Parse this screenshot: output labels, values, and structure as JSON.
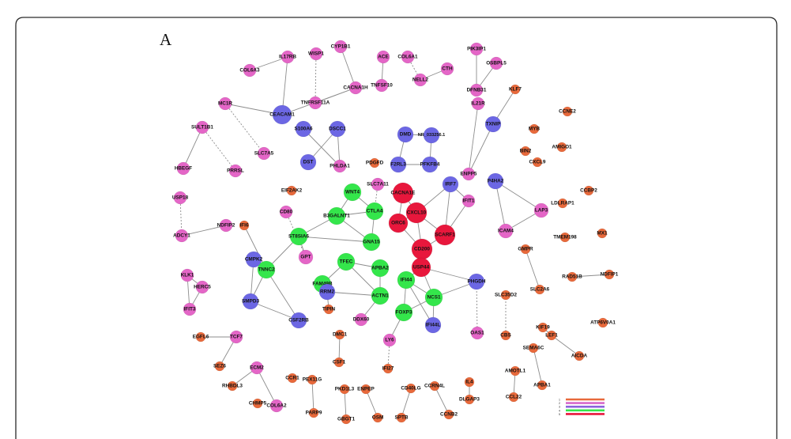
{
  "figure": {
    "panel_label": "A"
  },
  "groups": [
    {
      "id": 1,
      "color": "#E8693B"
    },
    {
      "id": 2,
      "color": "#E466C7"
    },
    {
      "id": 3,
      "color": "#6C67E4"
    },
    {
      "id": 4,
      "color": "#34E64B"
    },
    {
      "id": 5,
      "color": "#E8173C"
    }
  ],
  "legend": [
    {
      "label": "1",
      "color": "#E8693B"
    },
    {
      "label": "2",
      "color": "#D768CC"
    },
    {
      "label": "3",
      "color": "#8A62DC"
    },
    {
      "label": "4",
      "color": "#34E64B"
    },
    {
      "label": "5",
      "color": "#E8173C"
    }
  ],
  "nodes": [
    {
      "label": "ACE",
      "group": 2
    },
    {
      "label": "COL6A1",
      "group": 2
    },
    {
      "label": "CTH",
      "group": 2
    },
    {
      "label": "CYP1B1",
      "group": 2
    },
    {
      "label": "WISP1",
      "group": 2
    },
    {
      "label": "IL17RB",
      "group": 2
    },
    {
      "label": "COL6A3",
      "group": 2
    },
    {
      "label": "PIK3IP1",
      "group": 2
    },
    {
      "label": "OSBPL5",
      "group": 2
    },
    {
      "label": "NELL2",
      "group": 2
    },
    {
      "label": "DFNB31",
      "group": 2
    },
    {
      "label": "CACNA1H",
      "group": 2
    },
    {
      "label": "TNFSF10",
      "group": 2
    },
    {
      "label": "TNFRSF11A",
      "group": 2
    },
    {
      "label": "KLF7",
      "group": 1
    },
    {
      "label": "MC1R",
      "group": 2
    },
    {
      "label": "CEACAM1",
      "group": 3
    },
    {
      "label": "IL21R",
      "group": 2
    },
    {
      "label": "CCNE2",
      "group": 1
    },
    {
      "label": "TXNIP",
      "group": 3
    },
    {
      "label": "MYB",
      "group": 1
    },
    {
      "label": "SULT1B1",
      "group": 2
    },
    {
      "label": "S100A6",
      "group": 3
    },
    {
      "label": "DSCC1",
      "group": 3
    },
    {
      "label": "DMD",
      "group": 3
    },
    {
      "label": "NR_033256.1",
      "group": 3
    },
    {
      "label": "SLC7A5",
      "group": 2
    },
    {
      "label": "BIN2",
      "group": 1
    },
    {
      "label": "AMIGO1",
      "group": 1
    },
    {
      "label": "DST",
      "group": 3
    },
    {
      "label": "CXCL9",
      "group": 1
    },
    {
      "label": "PHLDA1",
      "group": 2
    },
    {
      "label": "PDGFD",
      "group": 1
    },
    {
      "label": "F2RL3",
      "group": 3
    },
    {
      "label": "PFKFB4",
      "group": 3
    },
    {
      "label": "HBEGF",
      "group": 2
    },
    {
      "label": "PRRSL",
      "group": 2
    },
    {
      "label": "ENPP5",
      "group": 2
    },
    {
      "label": "P4HA2",
      "group": 3
    },
    {
      "label": "EIF2AK2",
      "group": 1
    },
    {
      "label": "SLC7A11",
      "group": 2
    },
    {
      "label": "IRF7",
      "group": 3
    },
    {
      "label": "WNT4",
      "group": 4
    },
    {
      "label": "CACNA1E",
      "group": 5
    },
    {
      "label": "CCBP2",
      "group": 1
    },
    {
      "label": "USP18",
      "group": 2
    },
    {
      "label": "IFIT1",
      "group": 2
    },
    {
      "label": "LDLRAP1",
      "group": 1
    },
    {
      "label": "LAP3",
      "group": 2
    },
    {
      "label": "CTLA4",
      "group": 4
    },
    {
      "label": "CD80",
      "group": 2
    },
    {
      "label": "CXCL10",
      "group": 5
    },
    {
      "label": "B3GALNT1",
      "group": 4
    },
    {
      "label": "ORC6",
      "group": 5
    },
    {
      "label": "NDFIP2",
      "group": 2
    },
    {
      "label": "IFI6",
      "group": 1
    },
    {
      "label": "ICAM4",
      "group": 2
    },
    {
      "label": "MX1",
      "group": 1
    },
    {
      "label": "SCARF1",
      "group": 5
    },
    {
      "label": "ADCY1",
      "group": 2
    },
    {
      "label": "ST8SIA6",
      "group": 4
    },
    {
      "label": "TMEM198",
      "group": 1
    },
    {
      "label": "GNA15",
      "group": 4
    },
    {
      "label": "CD200",
      "group": 5
    },
    {
      "label": "GMPR",
      "group": 1
    },
    {
      "label": "GPT",
      "group": 2
    },
    {
      "label": "CMPK2",
      "group": 3
    },
    {
      "label": "TFEC",
      "group": 4
    },
    {
      "label": "USP44",
      "group": 5
    },
    {
      "label": "APBA2",
      "group": 4
    },
    {
      "label": "TNNC2",
      "group": 4
    },
    {
      "label": "KLK1",
      "group": 2
    },
    {
      "label": "RAD51B",
      "group": 1
    },
    {
      "label": "NDFIP1",
      "group": 1
    },
    {
      "label": "IFI44",
      "group": 4
    },
    {
      "label": "PHGDH",
      "group": 3
    },
    {
      "label": "FAM49B",
      "group": 4
    },
    {
      "label": "HERC5",
      "group": 2
    },
    {
      "label": "SLC2A6",
      "group": 1
    },
    {
      "label": "RRM2",
      "group": 3
    },
    {
      "label": "ACTN1",
      "group": 4
    },
    {
      "label": "NCS1",
      "group": 4
    },
    {
      "label": "SLC35D2",
      "group": 1
    },
    {
      "label": "SMPD3",
      "group": 3
    },
    {
      "label": "IFIT3",
      "group": 2
    },
    {
      "label": "TIPIN",
      "group": 1
    },
    {
      "label": "FOXP3",
      "group": 4
    },
    {
      "label": "DDX60",
      "group": 2
    },
    {
      "label": "CSF2RB",
      "group": 3
    },
    {
      "label": "ATP6V0A1",
      "group": 1
    },
    {
      "label": "IFI44L",
      "group": 3
    },
    {
      "label": "KIF19",
      "group": 1
    },
    {
      "label": "OAS1",
      "group": 2
    },
    {
      "label": "DMC1",
      "group": 1
    },
    {
      "label": "CBS",
      "group": 1
    },
    {
      "label": "LEF1",
      "group": 1
    },
    {
      "label": "EGFL6",
      "group": 1
    },
    {
      "label": "TCF7",
      "group": 2
    },
    {
      "label": "LY6",
      "group": 2
    },
    {
      "label": "SEMA6C",
      "group": 1
    },
    {
      "label": "AICDA",
      "group": 1
    },
    {
      "label": "CSF1",
      "group": 1
    },
    {
      "label": "SEZ6",
      "group": 1
    },
    {
      "label": "ECM2",
      "group": 2
    },
    {
      "label": "IFI27",
      "group": 1
    },
    {
      "label": "AMOTL1",
      "group": 1
    },
    {
      "label": "CCR1",
      "group": 1
    },
    {
      "label": "PEX11G",
      "group": 1
    },
    {
      "label": "IL4",
      "group": 1
    },
    {
      "label": "APBA1",
      "group": 1
    },
    {
      "label": "CCRN4L",
      "group": 1
    },
    {
      "label": "RHBDL3",
      "group": 1
    },
    {
      "label": "CD40LG",
      "group": 1
    },
    {
      "label": "PKD1L3",
      "group": 1
    },
    {
      "label": "ENPEP",
      "group": 1
    },
    {
      "label": "CCL22",
      "group": 1
    },
    {
      "label": "DLGAP3",
      "group": 1
    },
    {
      "label": "CHMP5",
      "group": 1
    },
    {
      "label": "COL6A2",
      "group": 2
    },
    {
      "label": "PARP9",
      "group": 1
    },
    {
      "label": "CCNB2",
      "group": 1
    },
    {
      "label": "OSM",
      "group": 1
    },
    {
      "label": "SPTB",
      "group": 1
    },
    {
      "label": "GBGT1",
      "group": 1
    }
  ],
  "edges": [
    {
      "source": "ACE",
      "target": "TNFSF10",
      "dashed": false
    },
    {
      "source": "COL6A1",
      "target": "NELL2",
      "dashed": true
    },
    {
      "source": "CTH",
      "target": "NELL2",
      "dashed": false
    },
    {
      "source": "CYP1B1",
      "target": "CACNA1H",
      "dashed": false
    },
    {
      "source": "WISP1",
      "target": "TNFRSF11A",
      "dashed": true
    },
    {
      "source": "IL17RB",
      "target": "COL6A3",
      "dashed": false
    },
    {
      "source": "IL17RB",
      "target": "CEACAM1",
      "dashed": false
    },
    {
      "source": "MC1R",
      "target": "CEACAM1",
      "dashed": false
    },
    {
      "source": "CEACAM1",
      "target": "CACNA1H",
      "dashed": false
    },
    {
      "source": "TNFRSF11A",
      "target": "CACNA1H",
      "dashed": false
    },
    {
      "source": "PIK3IP1",
      "target": "DFNB31",
      "dashed": false
    },
    {
      "source": "OSBPL5",
      "target": "DFNB31",
      "dashed": false
    },
    {
      "source": "IL21R",
      "target": "ENPP5",
      "dashed": false
    },
    {
      "source": "TXNIP",
      "target": "ENPP5",
      "dashed": false
    },
    {
      "source": "KLF7",
      "target": "TXNIP",
      "dashed": false
    },
    {
      "source": "SULT1B1",
      "target": "HBEGF",
      "dashed": false
    },
    {
      "source": "SULT1B1",
      "target": "PRRSL",
      "dashed": true
    },
    {
      "source": "MC1R",
      "target": "SLC7A5",
      "dashed": true
    },
    {
      "source": "S100A6",
      "target": "PHLDA1",
      "dashed": false
    },
    {
      "source": "DSCC1",
      "target": "PHLDA1",
      "dashed": false
    },
    {
      "source": "DST",
      "target": "DSCC1",
      "dashed": false
    },
    {
      "source": "DMD",
      "target": "F2RL3",
      "dashed": false
    },
    {
      "source": "DMD",
      "target": "NR_033256.1",
      "dashed": false
    },
    {
      "source": "NR_033256.1",
      "target": "PFKFB4",
      "dashed": false
    },
    {
      "source": "F2RL3",
      "target": "PFKFB4",
      "dashed": false
    },
    {
      "source": "P4HA2",
      "target": "LAP3",
      "dashed": false
    },
    {
      "source": "P4HA2",
      "target": "ICAM4",
      "dashed": false
    },
    {
      "source": "LAP3",
      "target": "ICAM4",
      "dashed": false
    },
    {
      "source": "WNT4",
      "target": "B3GALNT1",
      "dashed": false
    },
    {
      "source": "WNT4",
      "target": "CTLA4",
      "dashed": false
    },
    {
      "source": "B3GALNT1",
      "target": "CTLA4",
      "dashed": false
    },
    {
      "source": "B3GALNT1",
      "target": "GNA15",
      "dashed": false
    },
    {
      "source": "B3GALNT1",
      "target": "ST8SIA6",
      "dashed": false
    },
    {
      "source": "CTLA4",
      "target": "GNA15",
      "dashed": false
    },
    {
      "source": "GNA15",
      "target": "ST8SIA6",
      "dashed": false
    },
    {
      "source": "CTLA4",
      "target": "SLC7A11",
      "dashed": true
    },
    {
      "source": "CACNA1E",
      "target": "CXCL10",
      "dashed": false
    },
    {
      "source": "CACNA1E",
      "target": "ORC6",
      "dashed": false
    },
    {
      "source": "CXCL10",
      "target": "IRF7",
      "dashed": false
    },
    {
      "source": "CXCL10",
      "target": "ORC6",
      "dashed": false
    },
    {
      "source": "CXCL10",
      "target": "SCARF1",
      "dashed": false
    },
    {
      "source": "CXCL10",
      "target": "CD200",
      "dashed": false
    },
    {
      "source": "ORC6",
      "target": "CD200",
      "dashed": false
    },
    {
      "source": "SCARF1",
      "target": "CD200",
      "dashed": false
    },
    {
      "source": "IRF7",
      "target": "SCARF1",
      "dashed": false
    },
    {
      "source": "IRF7",
      "target": "IFIT1",
      "dashed": false
    },
    {
      "source": "IFIT1",
      "target": "SCARF1",
      "dashed": false
    },
    {
      "source": "CD200",
      "target": "USP44",
      "dashed": false
    },
    {
      "source": "ST8SIA6",
      "target": "TNNC2",
      "dashed": false
    },
    {
      "source": "ST8SIA6",
      "target": "GPT",
      "dashed": false
    },
    {
      "source": "CD80",
      "target": "GPT",
      "dashed": true
    },
    {
      "source": "IFI6",
      "target": "TNNC2",
      "dashed": false
    },
    {
      "source": "CMPK2",
      "target": "TNNC2",
      "dashed": false
    },
    {
      "source": "CMPK2",
      "target": "SMPD3",
      "dashed": false
    },
    {
      "source": "TNNC2",
      "target": "SMPD3",
      "dashed": false
    },
    {
      "source": "TNNC2",
      "target": "CSF2RB",
      "dashed": false
    },
    {
      "source": "SMPD3",
      "target": "CSF2RB",
      "dashed": false
    },
    {
      "source": "NDFIP2",
      "target": "ADCY1",
      "dashed": false
    },
    {
      "source": "USP18",
      "target": "ADCY1",
      "dashed": true
    },
    {
      "source": "KLK1",
      "target": "HERC5",
      "dashed": false
    },
    {
      "source": "HERC5",
      "target": "IFIT3",
      "dashed": false
    },
    {
      "source": "KLK1",
      "target": "IFIT3",
      "dashed": false
    },
    {
      "source": "TFEC",
      "target": "APBA2",
      "dashed": false
    },
    {
      "source": "TFEC",
      "target": "FAM49B",
      "dashed": false
    },
    {
      "source": "TFEC",
      "target": "ACTN1",
      "dashed": false
    },
    {
      "source": "APBA2",
      "target": "ACTN1",
      "dashed": false
    },
    {
      "source": "FAM49B",
      "target": "RRM2",
      "dashed": false
    },
    {
      "source": "RRM2",
      "target": "ACTN1",
      "dashed": false
    },
    {
      "source": "USP44",
      "target": "IFI44",
      "dashed": false
    },
    {
      "source": "USP44",
      "target": "NCS1",
      "dashed": false
    },
    {
      "source": "USP44",
      "target": "PHGDH",
      "dashed": false
    },
    {
      "source": "IFI44",
      "target": "FOXP3",
      "dashed": false
    },
    {
      "source": "IFI44",
      "target": "NCS1",
      "dashed": false
    },
    {
      "source": "NCS1",
      "target": "FOXP3",
      "dashed": false
    },
    {
      "source": "NCS1",
      "target": "IFI44L",
      "dashed": false
    },
    {
      "source": "IFI44",
      "target": "IFI44L",
      "dashed": false
    },
    {
      "source": "NCS1",
      "target": "PHGDH",
      "dashed": false
    },
    {
      "source": "PHGDH",
      "target": "OAS1",
      "dashed": true
    },
    {
      "source": "ACTN1",
      "target": "DDX60",
      "dashed": false
    },
    {
      "source": "RRM2",
      "target": "TIPIN",
      "dashed": false
    },
    {
      "source": "FOXP3",
      "target": "LY6",
      "dashed": false
    },
    {
      "source": "LY6",
      "target": "IFI27",
      "dashed": true
    },
    {
      "source": "DMC1",
      "target": "CSF1",
      "dashed": false
    },
    {
      "source": "GMPR",
      "target": "SLC2A6",
      "dashed": false
    },
    {
      "source": "SLC35D2",
      "target": "CBS",
      "dashed": true
    },
    {
      "source": "KIF19",
      "target": "LEF1",
      "dashed": false
    },
    {
      "source": "LEF1",
      "target": "AICDA",
      "dashed": false
    },
    {
      "source": "RAD51B",
      "target": "NDFIP1",
      "dashed": false
    },
    {
      "source": "SEMA6C",
      "target": "APBA1",
      "dashed": false
    },
    {
      "source": "AMOTL1",
      "target": "CCL22",
      "dashed": false
    },
    {
      "source": "IL4",
      "target": "DLGAP3",
      "dashed": false
    },
    {
      "source": "EGFL6",
      "target": "TCF7",
      "dashed": false
    },
    {
      "source": "TCF7",
      "target": "SEZ6",
      "dashed": false
    },
    {
      "source": "ECM2",
      "target": "RHBDL3",
      "dashed": false
    },
    {
      "source": "ECM2",
      "target": "COL6A2",
      "dashed": false
    },
    {
      "source": "PEX11G",
      "target": "PARP9",
      "dashed": false
    },
    {
      "source": "PKD1L3",
      "target": "GBGT1",
      "dashed": false
    },
    {
      "source": "ENPEP",
      "target": "OSM",
      "dashed": false
    },
    {
      "source": "CD40LG",
      "target": "SPTB",
      "dashed": false
    },
    {
      "source": "CCRN4L",
      "target": "CCNB2",
      "dashed": false
    }
  ]
}
